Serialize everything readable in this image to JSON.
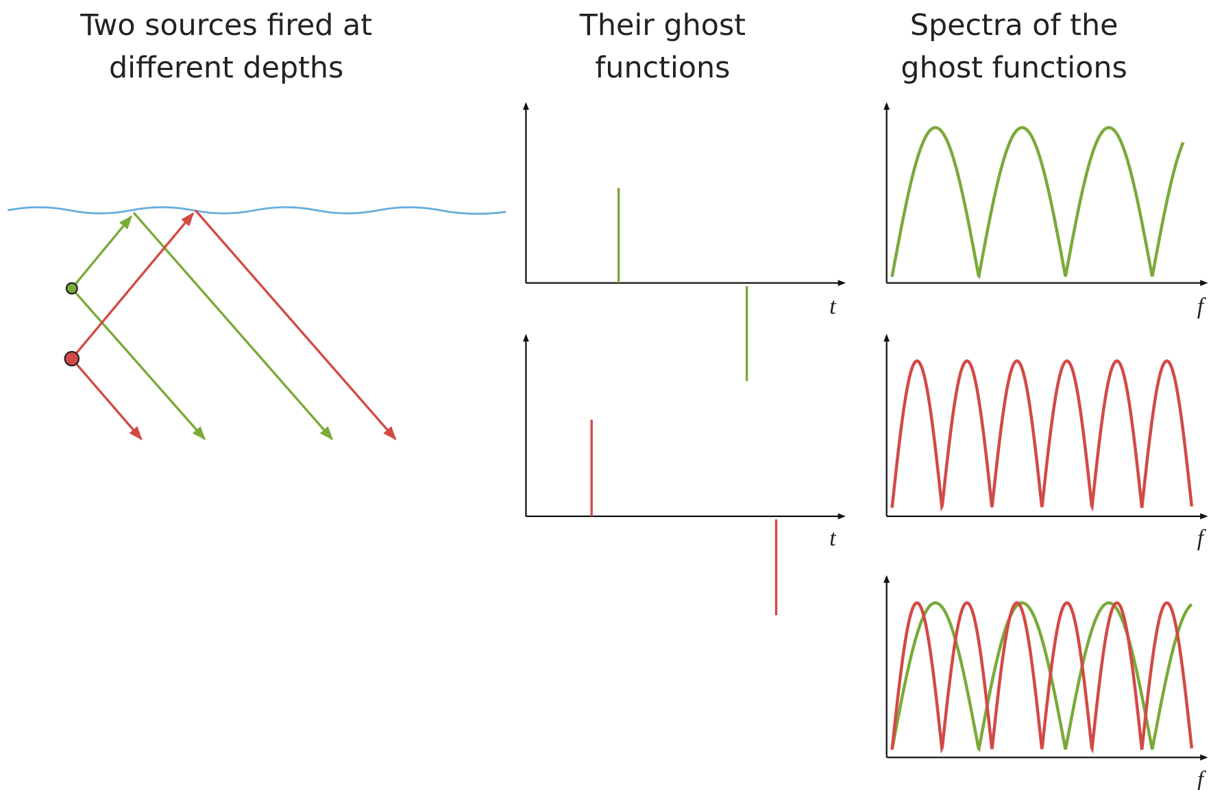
{
  "panels": [
    {
      "title": [
        "Two sources fired at",
        "different depths"
      ]
    },
    {
      "title": [
        "Their ghost",
        "functions"
      ],
      "plots": [
        {
          "axis_label": "t"
        },
        {
          "axis_label": "t"
        }
      ]
    },
    {
      "title": [
        "Spectra of the",
        "ghost functions"
      ],
      "plots": [
        {
          "axis_label": "f"
        },
        {
          "axis_label": "f"
        },
        {
          "axis_label": "f"
        }
      ]
    }
  ]
}
